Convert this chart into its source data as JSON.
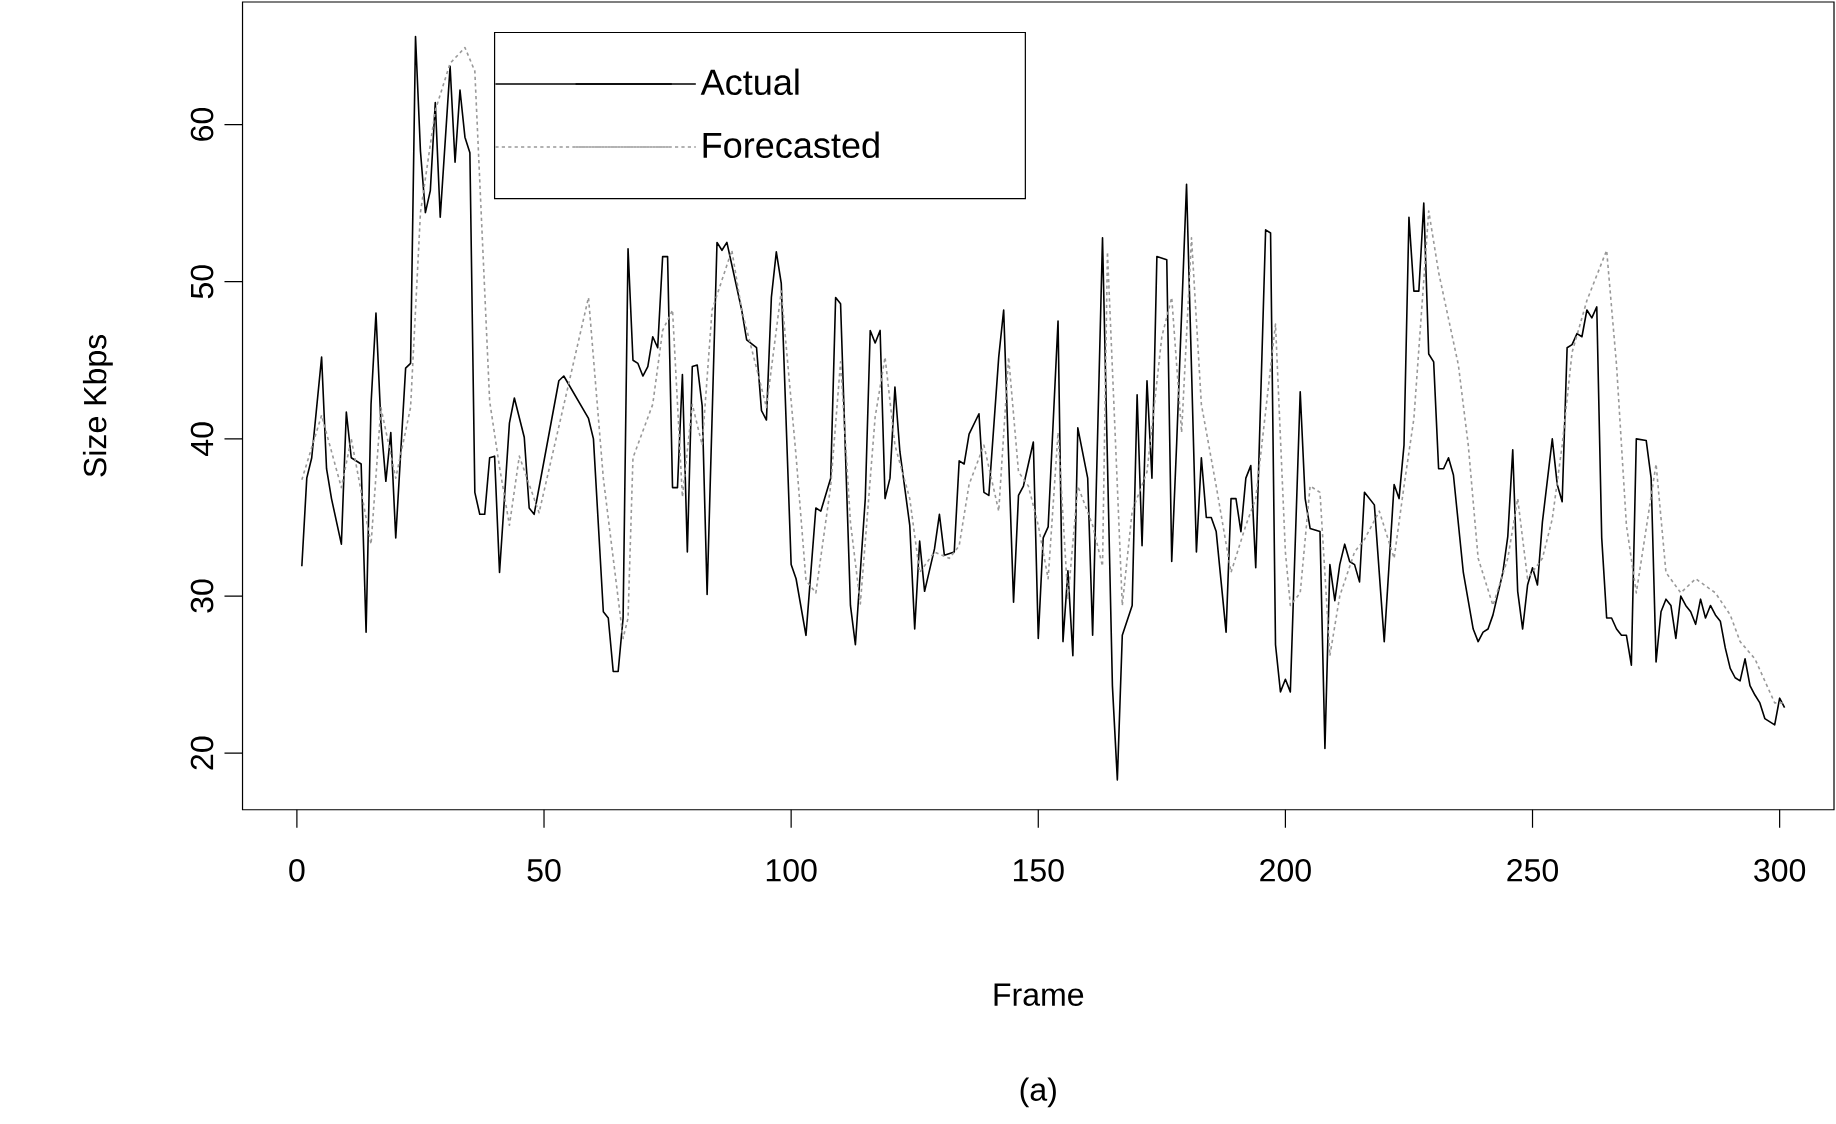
{
  "chart_data": {
    "type": "line",
    "xlabel": "Frame",
    "ylabel": "Size Kbps",
    "annotations": [
      "(a)"
    ],
    "xlim": [
      -11,
      311
    ],
    "ylim": [
      16.4,
      67.8
    ],
    "xticks": [
      0,
      50,
      100,
      150,
      200,
      250,
      300
    ],
    "yticks": [
      20,
      30,
      40,
      50,
      60
    ],
    "legend": "top left",
    "marker": "none",
    "series": [
      {
        "name": "Actual",
        "color": "#000000",
        "line_style": "solid",
        "x": [
          1,
          2,
          3,
          5,
          6,
          7,
          9,
          10,
          11,
          13,
          14,
          15,
          16,
          17,
          18,
          19,
          20,
          22,
          23,
          24,
          25,
          26,
          27,
          28,
          29,
          31,
          32,
          33,
          34,
          35,
          36,
          37,
          38,
          39,
          40,
          41,
          43,
          44,
          46,
          47,
          48,
          53,
          54,
          59,
          60,
          62,
          63,
          64,
          65,
          66,
          67,
          68,
          69,
          70,
          71,
          72,
          73,
          74,
          75,
          76,
          77,
          78,
          79,
          80,
          81,
          82,
          83,
          85,
          86,
          87,
          90,
          91,
          93,
          94,
          95,
          96,
          97,
          98,
          100,
          101,
          103,
          105,
          106,
          108,
          109,
          110,
          112,
          113,
          115,
          116,
          117,
          118,
          119,
          120,
          121,
          122,
          124,
          125,
          126,
          127,
          129,
          130,
          131,
          133,
          134,
          135,
          136,
          138,
          139,
          140,
          142,
          143,
          145,
          146,
          147,
          149,
          150,
          151,
          152,
          154,
          155,
          156,
          157,
          158,
          160,
          161,
          163,
          165,
          166,
          167,
          169,
          170,
          171,
          172,
          173,
          174,
          176,
          177,
          178,
          180,
          182,
          183,
          184,
          185,
          186,
          188,
          189,
          190,
          191,
          192,
          193,
          194,
          196,
          197,
          198,
          199,
          200,
          201,
          203,
          204,
          205,
          207,
          208,
          209,
          210,
          211,
          212,
          213,
          214,
          215,
          216,
          218,
          220,
          222,
          223,
          224,
          225,
          226,
          227,
          228,
          229,
          230,
          231,
          232,
          233,
          234,
          236,
          238,
          239,
          240,
          241,
          242,
          244,
          245,
          246,
          247,
          248,
          249,
          250,
          251,
          252,
          254,
          255,
          256,
          257,
          258,
          259,
          260,
          261,
          262,
          263,
          264,
          265,
          266,
          267,
          268,
          269,
          270,
          271,
          273,
          274,
          275,
          276,
          277,
          278,
          279,
          280,
          281,
          282,
          283,
          284,
          285,
          286,
          287,
          288,
          289,
          290,
          291,
          292,
          293,
          294,
          295,
          296,
          297,
          299,
          300,
          301
        ],
        "values": [
          31.9,
          37.5,
          38.8,
          45.2,
          38.1,
          36.2,
          33.3,
          41.7,
          38.8,
          38.4,
          27.7,
          42.2,
          48.0,
          41,
          37.3,
          40.4,
          33.7,
          44.5,
          44.8,
          65.6,
          58.3,
          54.4,
          55.8,
          61.4,
          54.1,
          63.7,
          57.6,
          62.2,
          59.2,
          58.2,
          36.6,
          35.2,
          35.2,
          38.8,
          38.9,
          31.5,
          41,
          42.6,
          40.1,
          35.6,
          35.2,
          43.7,
          44.0,
          41.3,
          40.0,
          29,
          28.6,
          25.2,
          25.2,
          28.6,
          52.1,
          45,
          44.8,
          44,
          44.6,
          46.5,
          45.8,
          51.6,
          51.6,
          36.9,
          36.9,
          44.1,
          32.8,
          44.6,
          44.7,
          42.1,
          30.1,
          52.5,
          52,
          52.5,
          48.2,
          46.3,
          45.8,
          41.8,
          41.2,
          49,
          51.9,
          49.9,
          32,
          31.1,
          27.5,
          35.6,
          35.4,
          37.5,
          49,
          48.6,
          29.4,
          26.9,
          36.2,
          46.9,
          46.1,
          46.9,
          36.2,
          37.5,
          43.3,
          39.2,
          34.5,
          27.9,
          33.5,
          30.3,
          33,
          35.2,
          32.6,
          32.8,
          38.6,
          38.4,
          40.3,
          41.6,
          36.6,
          36.4,
          45.2,
          48.2,
          29.6,
          36.4,
          37,
          39.8,
          27.3,
          33.7,
          34.4,
          47.5,
          27.1,
          31.6,
          26.2,
          40.7,
          37.5,
          27.5,
          52.8,
          24.3,
          18.3,
          27.5,
          29.4,
          42.8,
          33.2,
          43.7,
          37.5,
          51.6,
          51.4,
          32.2,
          39.7,
          56.2,
          32.8,
          38.8,
          35,
          35,
          34.1,
          27.7,
          36.2,
          36.2,
          34.1,
          37.5,
          38.3,
          31.8,
          53.3,
          53.1,
          26.9,
          23.9,
          24.7,
          23.9,
          43,
          36.2,
          34.3,
          34.1,
          20.3,
          32,
          29.7,
          32,
          33.3,
          32.2,
          32,
          30.9,
          36.6,
          35.8,
          27.1,
          37.1,
          36.2,
          39.6,
          54.1,
          49.4,
          49.4,
          55,
          45.4,
          44.9,
          38.1,
          38.1,
          38.8,
          37.7,
          31.5,
          27.9,
          27.1,
          27.7,
          27.9,
          28.8,
          31.5,
          33.8,
          39.3,
          30.3,
          27.9,
          30.7,
          31.8,
          30.7,
          34.7,
          40,
          37.1,
          36,
          45.8,
          46,
          46.7,
          46.5,
          48.2,
          47.7,
          48.4,
          33.7,
          28.6,
          28.6,
          27.9,
          27.5,
          27.5,
          25.6,
          40,
          39.9,
          37.5,
          25.8,
          29,
          29.8,
          29.4,
          27.3,
          30,
          29.4,
          29,
          28.2,
          29.8,
          28.6,
          29.4,
          28.8,
          28.4,
          26.7,
          25.4,
          24.8,
          24.6,
          26,
          24.3,
          23.7,
          23.2,
          22.2,
          21.8,
          23.5,
          22.9
        ]
      },
      {
        "name": "Forecasted",
        "color": "#999999",
        "line_style": "dotted",
        "x": [
          1,
          5,
          9,
          11,
          15,
          17,
          20,
          23,
          25,
          28,
          31,
          34,
          36,
          39,
          41,
          43,
          45,
          49,
          59,
          62,
          66,
          67,
          68,
          72,
          74,
          76,
          78,
          80,
          82,
          84,
          88,
          90,
          93,
          95,
          98,
          101,
          103,
          105,
          108,
          110,
          112,
          114,
          117,
          119,
          121,
          124,
          126,
          129,
          132,
          134,
          136,
          139,
          142,
          144,
          146,
          148,
          150,
          152,
          154,
          156,
          158,
          161,
          163,
          164,
          166,
          167,
          169,
          172,
          175,
          177,
          179,
          181,
          183,
          186,
          189,
          192,
          194,
          198,
          200,
          201,
          203,
          205,
          207,
          209,
          211,
          214,
          216,
          219,
          222,
          224,
          226,
          229,
          231,
          235,
          237,
          239,
          242,
          245,
          247,
          249,
          252,
          254,
          256,
          258,
          261,
          265,
          267,
          269,
          271,
          275,
          277,
          280,
          283,
          287,
          290,
          292,
          295,
          299,
          301
        ],
        "values": [
          37.4,
          41.5,
          36.9,
          40,
          33.3,
          42,
          37.5,
          42,
          54.4,
          60.9,
          63.9,
          64.9,
          63.4,
          42.4,
          38.2,
          34.5,
          38.9,
          35.3,
          49,
          37.5,
          27.3,
          28.6,
          38.8,
          42.2,
          46.9,
          48.2,
          36.3,
          42.2,
          39.6,
          48.2,
          52,
          48.2,
          44.5,
          42,
          49.4,
          38.9,
          31,
          30.2,
          37,
          44.9,
          34.7,
          29.5,
          41.4,
          45.2,
          39.6,
          36.2,
          31.5,
          32.8,
          32.4,
          33.2,
          37.1,
          39.6,
          35.4,
          45.2,
          37.9,
          37,
          34.5,
          31.1,
          40.4,
          29.8,
          37,
          34.5,
          31.9,
          51.9,
          37,
          29.4,
          35.4,
          37.9,
          46.5,
          49,
          40.4,
          52.8,
          42.2,
          37,
          31.5,
          34.5,
          36.2,
          47.3,
          32.8,
          29.4,
          30.2,
          37,
          36.6,
          26.2,
          30,
          32.8,
          33.6,
          35.4,
          32.4,
          37,
          41.3,
          54.5,
          50.6,
          44.7,
          39.6,
          32.4,
          29.4,
          32.4,
          36.2,
          31.1,
          32.4,
          34.9,
          39.6,
          45.5,
          48.8,
          52,
          44.7,
          34.5,
          30.2,
          38.4,
          31.5,
          30.2,
          31.1,
          30.2,
          28.8,
          27.1,
          26,
          23.2,
          23.2
        ]
      }
    ]
  }
}
